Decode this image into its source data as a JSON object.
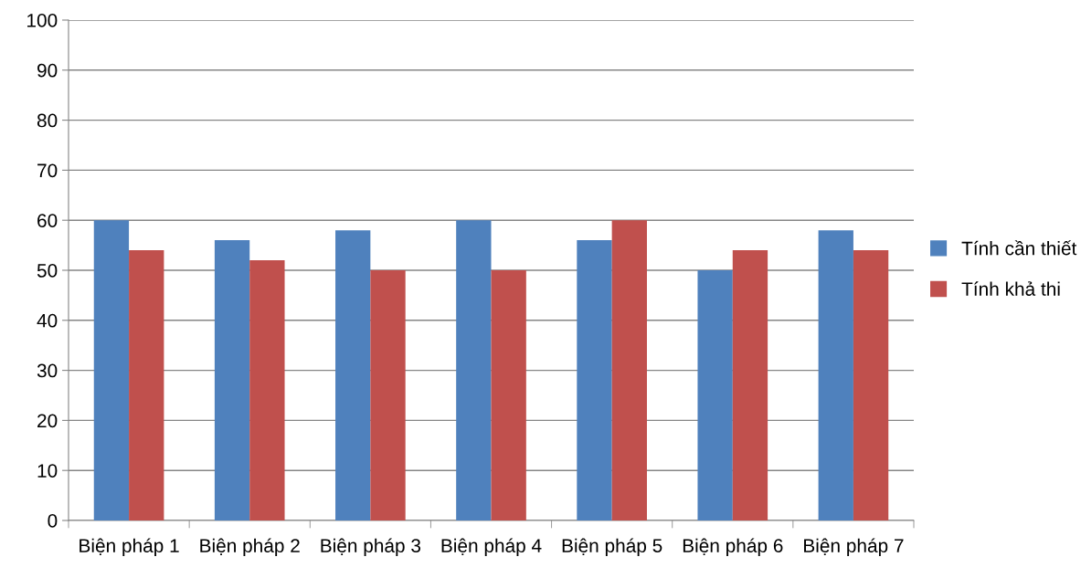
{
  "chart_data": {
    "type": "bar",
    "categories": [
      "Biện pháp 1",
      "Biện pháp 2",
      "Biện pháp 3",
      "Biện pháp 4",
      "Biện pháp 5",
      "Biện pháp 6",
      "Biện pháp 7"
    ],
    "series": [
      {
        "name": "Tính cần thiết",
        "color": "#4f81bd",
        "values": [
          60,
          56,
          58,
          60,
          56,
          50,
          58
        ]
      },
      {
        "name": "Tính khả thi",
        "color": "#c0504d",
        "values": [
          54,
          52,
          50,
          50,
          60,
          54,
          54
        ]
      }
    ],
    "ylim": [
      0,
      100
    ],
    "yticks": [
      0,
      10,
      20,
      30,
      40,
      50,
      60,
      70,
      80,
      90,
      100
    ],
    "grid": "y",
    "legend": "right"
  }
}
